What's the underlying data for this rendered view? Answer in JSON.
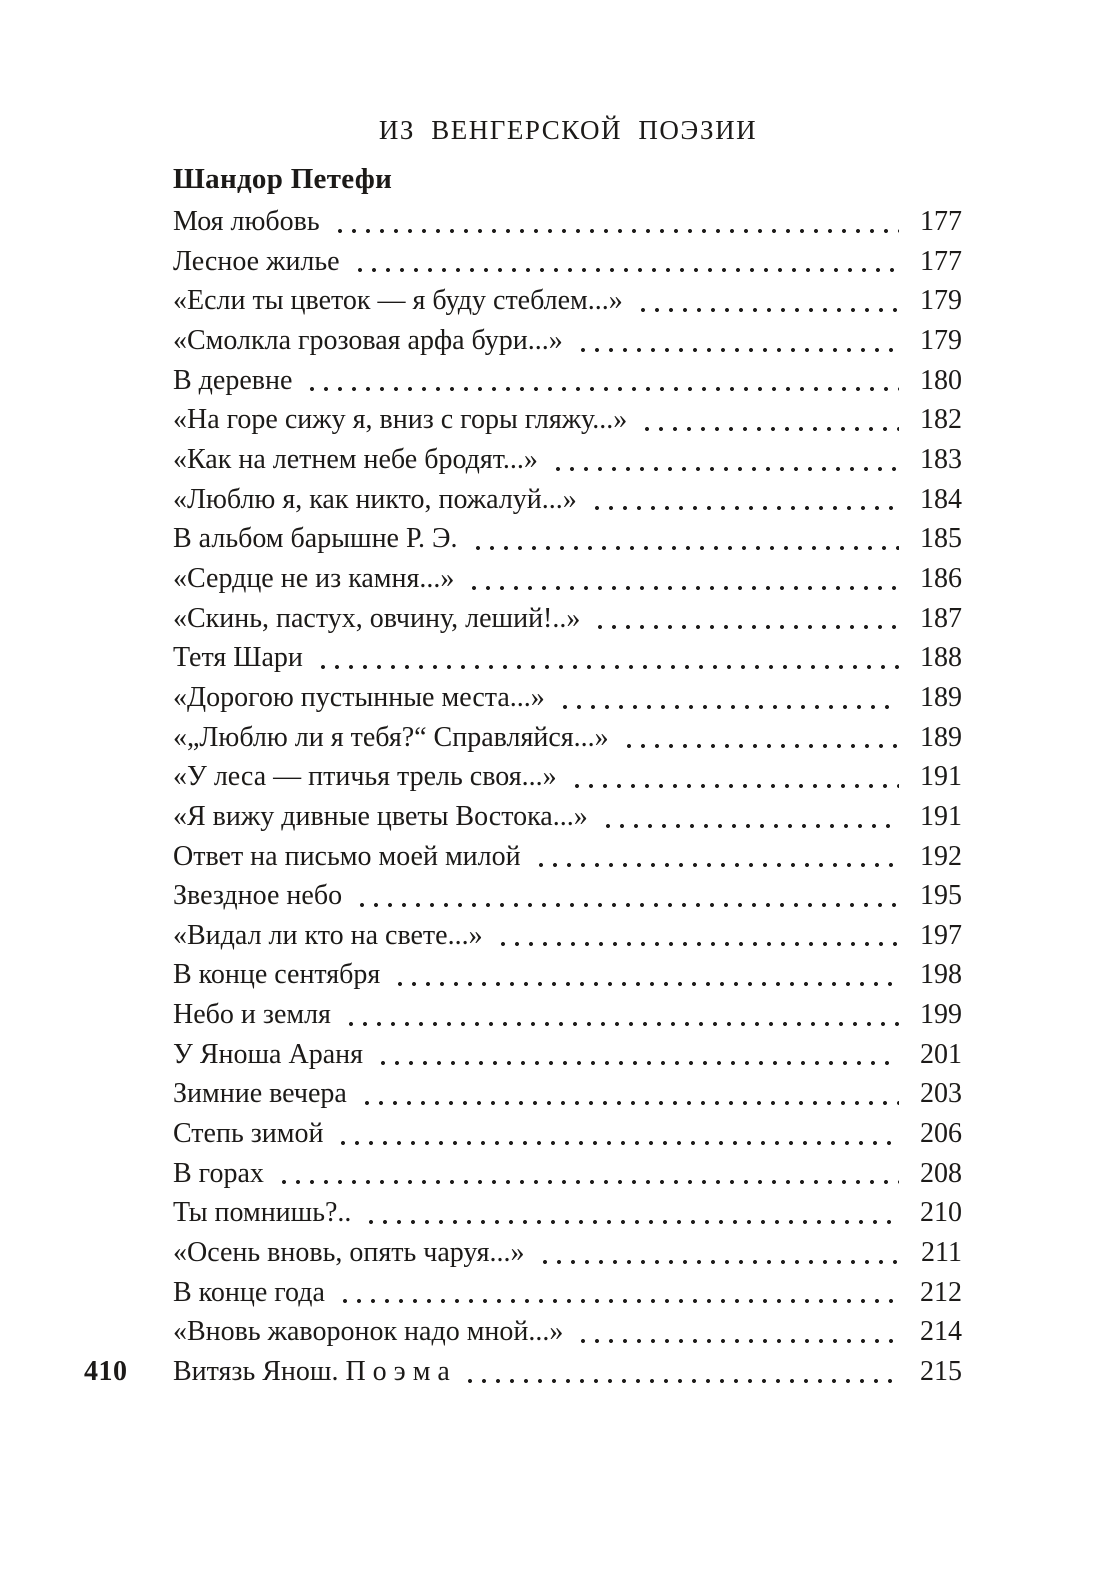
{
  "document": {
    "header": "ИЗ ВЕНГЕРСКОЙ ПОЭЗИИ",
    "author": "Шандор Петефи",
    "folio": "410",
    "toc": [
      {
        "title": "Моя любовь",
        "page": "177"
      },
      {
        "title": "Лесное жилье",
        "page": "177"
      },
      {
        "title": "«Если ты цветок — я буду стеблем...»",
        "page": "179"
      },
      {
        "title": "«Смолкла грозовая арфа бури...»",
        "page": "179"
      },
      {
        "title": "В деревне",
        "page": "180"
      },
      {
        "title": "«На горе сижу я, вниз с горы гляжу...»",
        "page": "182"
      },
      {
        "title": "«Как на летнем небе бродят...»",
        "page": "183"
      },
      {
        "title": "«Люблю я, как никто, пожалуй...»",
        "page": "184"
      },
      {
        "title": "В альбом барышне Р. Э.",
        "page": "185"
      },
      {
        "title": "«Сердце не из камня...»",
        "page": "186"
      },
      {
        "title": "«Скинь, пастух, овчину, леший!..»",
        "page": "187"
      },
      {
        "title": "Тетя Шари",
        "page": "188"
      },
      {
        "title": "«Дорогою пустынные места...»",
        "page": "189"
      },
      {
        "title": "«„Люблю ли я тебя?“ Справляйся...»",
        "page": "189"
      },
      {
        "title": "«У леса — птичья трель своя...»",
        "page": "191"
      },
      {
        "title": "«Я вижу дивные цветы Востока...»",
        "page": "191"
      },
      {
        "title": "Ответ на письмо моей милой",
        "page": "192"
      },
      {
        "title": "Звездное небо",
        "page": "195"
      },
      {
        "title": "«Видал ли кто на свете...»",
        "page": "197"
      },
      {
        "title": "В конце сентября",
        "page": "198"
      },
      {
        "title": "Небо и земля",
        "page": "199"
      },
      {
        "title": "У Яноша Араня",
        "page": "201"
      },
      {
        "title": "Зимние вечера",
        "page": "203"
      },
      {
        "title": "Степь зимой",
        "page": "206"
      },
      {
        "title": "В горах",
        "page": "208"
      },
      {
        "title": "Ты помнишь?..",
        "page": "210"
      },
      {
        "title": "«Осень вновь, опять чаруя...»",
        "page": "211"
      },
      {
        "title": "В конце года",
        "page": "212"
      },
      {
        "title": "«Вновь жаворонок надо мной...»",
        "page": "214"
      },
      {
        "title": "Витязь Янош. П о э м а",
        "page": "215"
      }
    ]
  }
}
